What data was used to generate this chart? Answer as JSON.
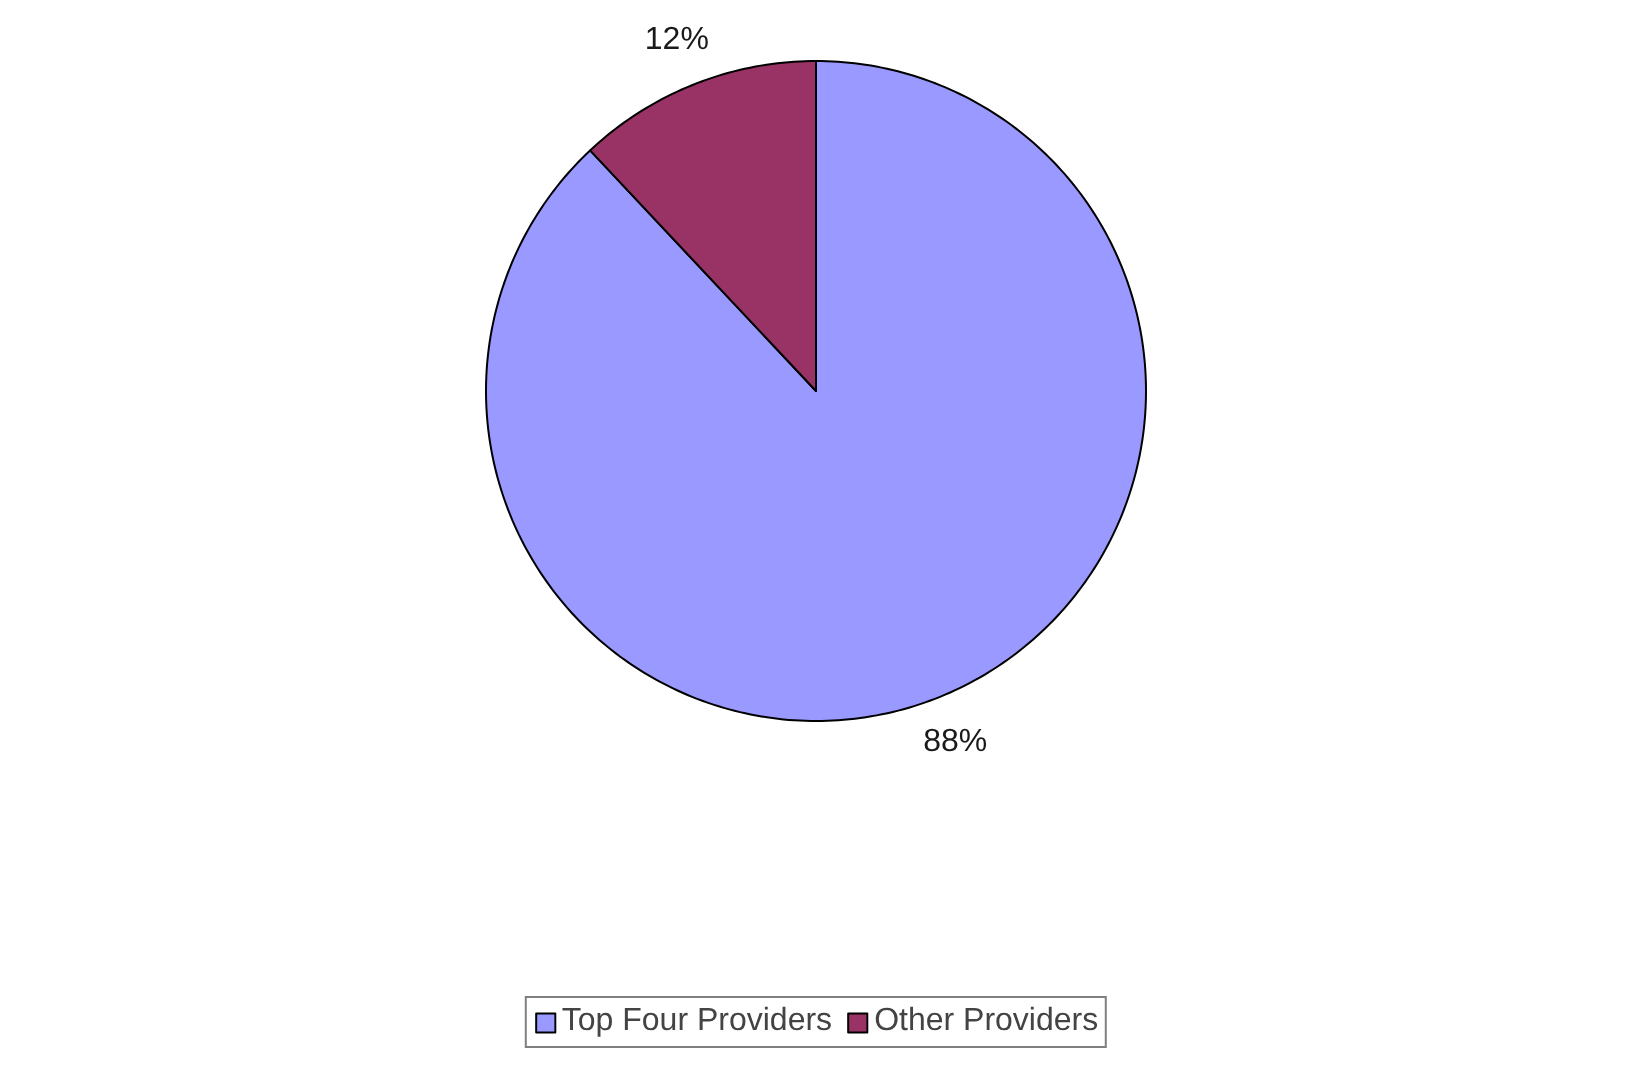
{
  "chart_data": {
    "type": "pie",
    "categories": [
      "Top Four Providers",
      "Other Providers"
    ],
    "values": [
      88,
      12
    ],
    "colors": [
      "#9999ff",
      "#993366"
    ],
    "value_labels": [
      "88%",
      "12%"
    ],
    "legend": "bottom"
  }
}
